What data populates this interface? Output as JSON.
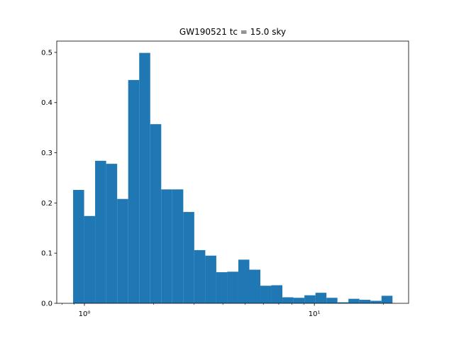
{
  "chart_data": {
    "type": "histogram",
    "title": "GW190521 tc = 15.0 sky",
    "bins": [
      0.893,
      0.997,
      1.113,
      1.243,
      1.388,
      1.55,
      1.731,
      1.933,
      2.158,
      2.41,
      2.691,
      3.004,
      3.355,
      3.746,
      4.183,
      4.671,
      5.215,
      5.824,
      6.503,
      7.261,
      8.108,
      9.053,
      10.11,
      11.29,
      12.6,
      14.07,
      15.71,
      17.54,
      19.59,
      21.87
    ],
    "values": [
      0.226,
      0.174,
      0.284,
      0.278,
      0.208,
      0.445,
      0.499,
      0.357,
      0.227,
      0.227,
      0.182,
      0.106,
      0.095,
      0.062,
      0.063,
      0.087,
      0.067,
      0.035,
      0.036,
      0.012,
      0.011,
      0.016,
      0.021,
      0.011,
      0.002,
      0.009,
      0.007,
      0.005,
      0.015
    ],
    "color": "#1f77b4",
    "xscale": "log",
    "xlim": [
      0.758,
      25.7
    ],
    "xticks": [
      {
        "value": 1,
        "label": "10⁰"
      },
      {
        "value": 10,
        "label": "10¹"
      }
    ],
    "xminorticks": [
      0.8,
      0.9,
      2,
      3,
      4,
      5,
      6,
      7,
      8,
      9,
      20
    ],
    "ylim": [
      0,
      0.5225
    ],
    "yticks": [
      {
        "value": 0,
        "label": "0.0"
      },
      0.1,
      0.2,
      0.3,
      0.4,
      0.5
    ]
  }
}
